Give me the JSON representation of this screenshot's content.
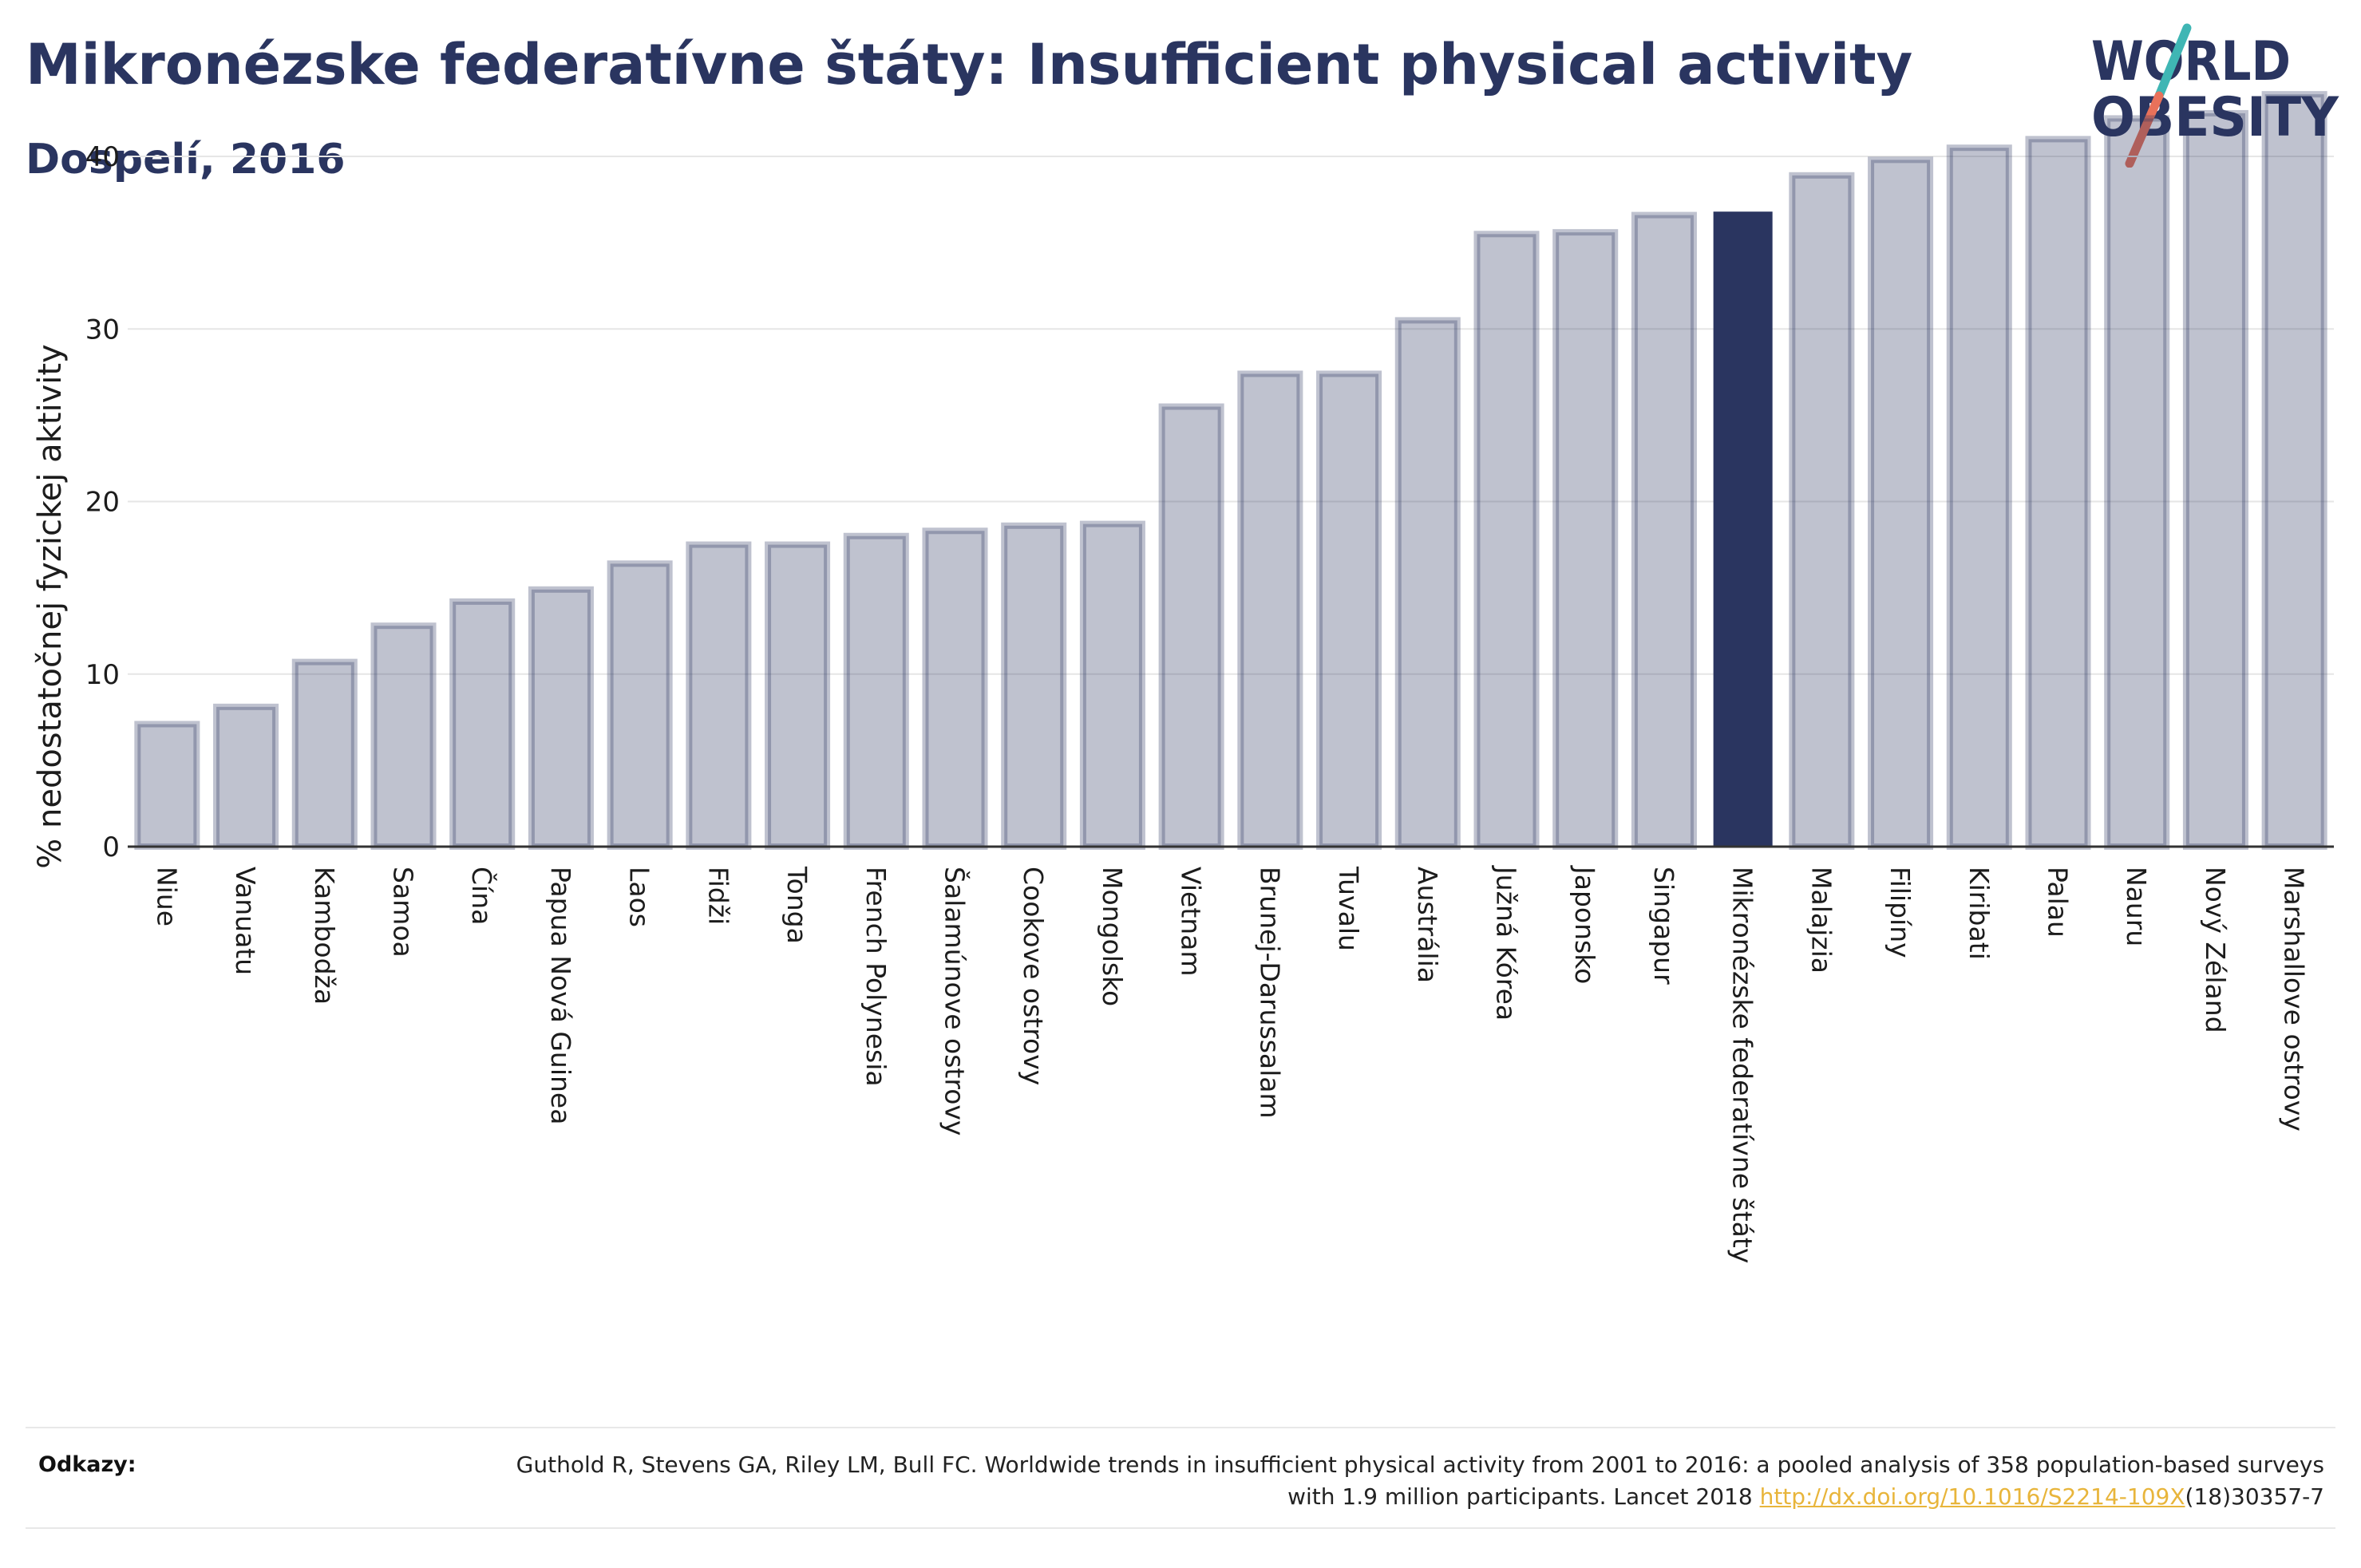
{
  "header": {
    "title": "Mikronézske federatívne štáty: Insufficient physical activity",
    "subtitle": "Dospelí, 2016"
  },
  "logo": {
    "line1": "WORLD",
    "line2": "OBESITY",
    "colors": {
      "text": "#2a3560",
      "slash_teal": "#3fb6b4",
      "slash_coral": "#e8715a"
    }
  },
  "colors": {
    "bar": "#2a3560",
    "highlight": "#2a3560",
    "axis": "#333333",
    "grid": "#e6e6e6",
    "link": "#e8b53b"
  },
  "chart_data": {
    "type": "bar",
    "title": "Mikronézske federatívne štáty: Insufficient physical activity",
    "subtitle": "Dospelí, 2016",
    "xlabel": "",
    "ylabel": "% nedostatočnej fyzickej aktivity",
    "ylim": [
      0,
      45
    ],
    "yticks": [
      0,
      10,
      20,
      30,
      40
    ],
    "grid": true,
    "legend": "none",
    "highlight_category": "Mikronézske federatívne štáty",
    "categories": [
      "Niue",
      "Vanuatu",
      "Kambodža",
      "Samoa",
      "Čína",
      "Papua Nová Guinea",
      "Laos",
      "Fidži",
      "Tonga",
      "French Polynesia",
      "Šalamúnove ostrovy",
      "Cookove ostrovy",
      "Mongolsko",
      "Vietnam",
      "Brunej-Darussalam",
      "Tuvalu",
      "Austrália",
      "Južná Kórea",
      "Japonsko",
      "Singapur",
      "Mikronézske federatívne štáty",
      "Malajzia",
      "Filipíny",
      "Kiribati",
      "Palau",
      "Nauru",
      "Nový Zéland",
      "Marshallove ostrovy"
    ],
    "values": [
      7.1,
      8.1,
      10.7,
      12.8,
      14.2,
      14.9,
      16.4,
      17.5,
      17.5,
      18.0,
      18.3,
      18.6,
      18.7,
      25.5,
      27.4,
      27.4,
      30.5,
      35.5,
      35.6,
      36.6,
      36.8,
      38.9,
      39.8,
      40.5,
      41.0,
      42.2,
      42.5,
      43.6
    ]
  },
  "references": {
    "label": "Odkazy:",
    "text_before": "Guthold R, Stevens GA, Riley LM, Bull FC. Worldwide trends in insufficient physical activity from 2001 to 2016: a pooled analysis of 358 population-based surveys with 1.9 million participants. Lancet 2018 ",
    "link": "http://dx.doi.org/10.1016/S2214-109X",
    "text_after": "(18)30357-7"
  }
}
